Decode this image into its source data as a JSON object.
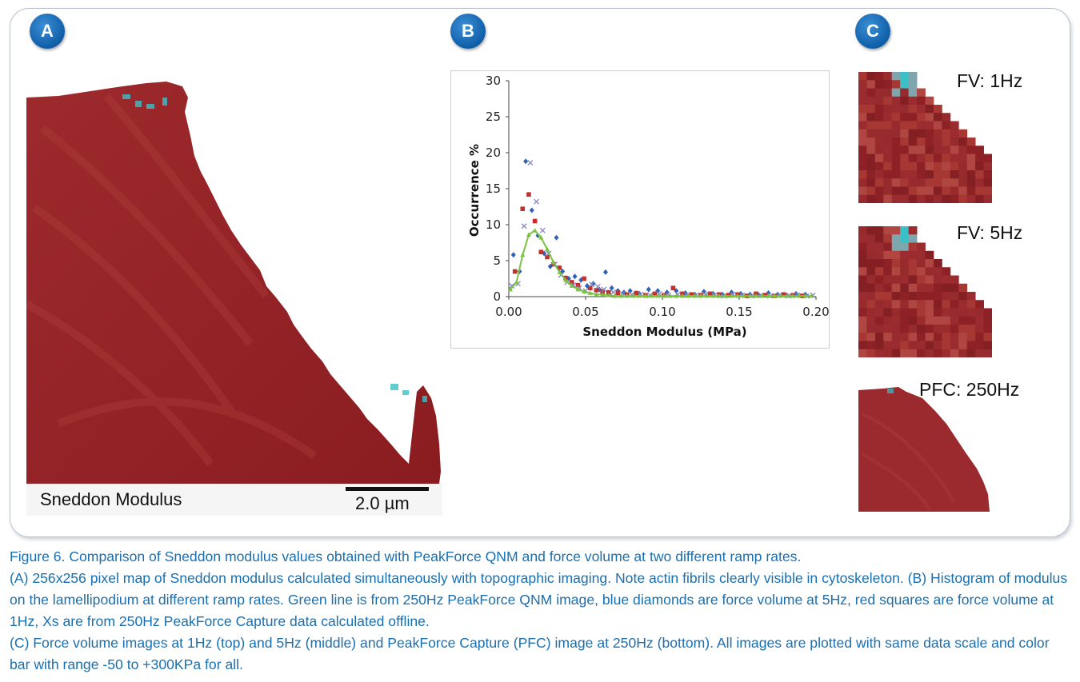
{
  "panels": {
    "a": {
      "badge": "A",
      "bottom_label": "Sneddon Modulus",
      "scale_bar": "2.0 µm"
    },
    "b": {
      "badge": "B"
    },
    "c": {
      "badge": "C",
      "labels": [
        "FV: 1Hz",
        "FV: 5Hz",
        "PFC: 250Hz"
      ]
    }
  },
  "colors": {
    "badge": "#1465b0",
    "map_dark": "#8e1f24",
    "map_mid": "#a4312f",
    "highlight": "#3cc0c8",
    "caption": "#1a6fb0",
    "series_fv5": "#2e62b8",
    "series_fv1": "#c0302c",
    "series_pfc_capture": "#7e86c6",
    "series_qnm": "#7cc242"
  },
  "chart_data": {
    "type": "scatter",
    "xlabel": "Sneddon Modulus (MPa)",
    "ylabel": "Occurrence %",
    "xlim": [
      0,
      0.2
    ],
    "ylim": [
      0,
      30
    ],
    "xticks": [
      "0.00",
      "0.05",
      "0.10",
      "0.15",
      "0.20"
    ],
    "yticks": [
      "0",
      "5",
      "10",
      "15",
      "20",
      "25",
      "30"
    ],
    "grid": false,
    "series": [
      {
        "marker": "diamond",
        "color": "#2e62b8",
        "points": [
          [
            0.003,
            5.8
          ],
          [
            0.007,
            3.5
          ],
          [
            0.011,
            18.8
          ],
          [
            0.015,
            12.0
          ],
          [
            0.019,
            8.5
          ],
          [
            0.023,
            6.0
          ],
          [
            0.027,
            4.2
          ],
          [
            0.031,
            8.2
          ],
          [
            0.035,
            3.5
          ],
          [
            0.039,
            2.5
          ],
          [
            0.043,
            2.8
          ],
          [
            0.047,
            2.3
          ],
          [
            0.051,
            1.5
          ],
          [
            0.055,
            1.8
          ],
          [
            0.059,
            1.0
          ],
          [
            0.063,
            3.4
          ],
          [
            0.067,
            1.2
          ],
          [
            0.071,
            0.8
          ],
          [
            0.075,
            0.6
          ],
          [
            0.079,
            0.8
          ],
          [
            0.085,
            0.4
          ],
          [
            0.091,
            1.0
          ],
          [
            0.097,
            0.8
          ],
          [
            0.103,
            0.6
          ],
          [
            0.109,
            0.8
          ],
          [
            0.115,
            0.5
          ],
          [
            0.121,
            0.3
          ],
          [
            0.127,
            0.7
          ],
          [
            0.133,
            0.4
          ],
          [
            0.139,
            0.3
          ],
          [
            0.145,
            0.6
          ],
          [
            0.151,
            0.4
          ],
          [
            0.157,
            0.3
          ],
          [
            0.163,
            0.2
          ],
          [
            0.169,
            0.5
          ],
          [
            0.175,
            0.3
          ],
          [
            0.181,
            0.2
          ],
          [
            0.187,
            0.4
          ],
          [
            0.193,
            0.3
          ]
        ]
      },
      {
        "marker": "square",
        "color": "#c0302c",
        "points": [
          [
            0.004,
            3.5
          ],
          [
            0.009,
            12.2
          ],
          [
            0.013,
            14.2
          ],
          [
            0.017,
            10.5
          ],
          [
            0.021,
            6.2
          ],
          [
            0.025,
            5.5
          ],
          [
            0.029,
            4.5
          ],
          [
            0.033,
            4.0
          ],
          [
            0.037,
            2.6
          ],
          [
            0.041,
            2.0
          ],
          [
            0.045,
            1.6
          ],
          [
            0.049,
            2.5
          ],
          [
            0.053,
            1.2
          ],
          [
            0.057,
            0.9
          ],
          [
            0.061,
            0.7
          ],
          [
            0.065,
            0.6
          ],
          [
            0.071,
            0.5
          ],
          [
            0.077,
            0.3
          ],
          [
            0.083,
            0.5
          ],
          [
            0.089,
            0.2
          ],
          [
            0.095,
            0.4
          ],
          [
            0.101,
            0.2
          ],
          [
            0.107,
            1.2
          ],
          [
            0.113,
            0.4
          ],
          [
            0.119,
            0.3
          ],
          [
            0.125,
            0.2
          ],
          [
            0.131,
            0.4
          ],
          [
            0.137,
            0.3
          ],
          [
            0.143,
            0.2
          ],
          [
            0.149,
            0.3
          ],
          [
            0.155,
            0.1
          ],
          [
            0.161,
            0.4
          ],
          [
            0.167,
            0.2
          ],
          [
            0.173,
            0.1
          ],
          [
            0.179,
            0.3
          ],
          [
            0.185,
            0.2
          ],
          [
            0.191,
            0.1
          ]
        ]
      },
      {
        "marker": "x",
        "color": "#7e86c6",
        "points": [
          [
            0.002,
            1.5
          ],
          [
            0.006,
            1.8
          ],
          [
            0.01,
            9.8
          ],
          [
            0.014,
            18.6
          ],
          [
            0.018,
            13.2
          ],
          [
            0.022,
            9.2
          ],
          [
            0.026,
            6.0
          ],
          [
            0.03,
            4.5
          ],
          [
            0.034,
            3.0
          ],
          [
            0.038,
            2.0
          ],
          [
            0.042,
            1.6
          ],
          [
            0.046,
            1.2
          ],
          [
            0.05,
            0.8
          ],
          [
            0.054,
            1.7
          ],
          [
            0.058,
            1.4
          ],
          [
            0.062,
            1.0
          ],
          [
            0.068,
            0.6
          ],
          [
            0.074,
            0.4
          ],
          [
            0.08,
            0.3
          ],
          [
            0.086,
            0.3
          ],
          [
            0.092,
            0.2
          ],
          [
            0.098,
            0.4
          ],
          [
            0.104,
            0.2
          ],
          [
            0.11,
            0.3
          ],
          [
            0.116,
            0.2
          ],
          [
            0.122,
            0.2
          ],
          [
            0.128,
            0.3
          ],
          [
            0.134,
            0.2
          ],
          [
            0.14,
            0.1
          ],
          [
            0.146,
            0.3
          ],
          [
            0.152,
            0.2
          ],
          [
            0.158,
            0.1
          ],
          [
            0.164,
            0.2
          ],
          [
            0.17,
            0.1
          ],
          [
            0.176,
            0.2
          ],
          [
            0.182,
            0.1
          ],
          [
            0.188,
            0.2
          ],
          [
            0.194,
            0.1
          ],
          [
            0.198,
            0.2
          ]
        ]
      },
      {
        "marker": "triangle-line",
        "color": "#7cc242",
        "points": [
          [
            0.001,
            1.0
          ],
          [
            0.005,
            2.0
          ],
          [
            0.009,
            5.8
          ],
          [
            0.013,
            8.6
          ],
          [
            0.017,
            9.2
          ],
          [
            0.021,
            8.2
          ],
          [
            0.025,
            6.6
          ],
          [
            0.029,
            4.8
          ],
          [
            0.033,
            3.4
          ],
          [
            0.037,
            2.3
          ],
          [
            0.041,
            1.5
          ],
          [
            0.045,
            1.0
          ],
          [
            0.049,
            0.7
          ],
          [
            0.053,
            0.5
          ],
          [
            0.057,
            0.3
          ],
          [
            0.061,
            0.3
          ],
          [
            0.065,
            0.2
          ],
          [
            0.069,
            0.1
          ],
          [
            0.073,
            0.1
          ],
          [
            0.077,
            0.1
          ],
          [
            0.081,
            0.1
          ],
          [
            0.085,
            0.1
          ],
          [
            0.089,
            0.1
          ],
          [
            0.093,
            0.1
          ],
          [
            0.097,
            0.1
          ],
          [
            0.101,
            0.1
          ],
          [
            0.105,
            0.1
          ],
          [
            0.109,
            0.1
          ],
          [
            0.113,
            0.1
          ],
          [
            0.117,
            0.1
          ],
          [
            0.121,
            0.1
          ],
          [
            0.125,
            0.1
          ],
          [
            0.129,
            0.1
          ],
          [
            0.133,
            0.1
          ],
          [
            0.137,
            0.1
          ],
          [
            0.141,
            0.1
          ],
          [
            0.145,
            0.1
          ],
          [
            0.149,
            0.1
          ],
          [
            0.153,
            0.1
          ],
          [
            0.157,
            0.1
          ],
          [
            0.161,
            0.1
          ],
          [
            0.165,
            0.1
          ],
          [
            0.169,
            0.1
          ],
          [
            0.173,
            0.1
          ],
          [
            0.177,
            0.1
          ],
          [
            0.181,
            0.1
          ],
          [
            0.185,
            0.1
          ],
          [
            0.189,
            0.1
          ],
          [
            0.193,
            0.1
          ],
          [
            0.197,
            0.1
          ]
        ]
      }
    ]
  },
  "caption": {
    "lines": [
      "Figure 6. Comparison of Sneddon modulus values obtained with PeakForce QNM and force volume at two different ramp rates.",
      "(A) 256x256 pixel map of Sneddon modulus calculated simultaneously with topographic imaging. Note actin fibrils clearly visible in cytoskeleton. (B) Histogram of modulus on the lamellipodium at different ramp rates. Green line is from 250Hz PeakForce QNM image, blue diamonds are force volume at 5Hz, red squares are force volume at 1Hz, Xs are from 250Hz PeakForce Capture data calculated offline.",
      "(C) Force volume images at 1Hz (top) and 5Hz (middle) and PeakForce Capture (PFC) image at 250Hz (bottom). All images are plotted with same data scale and color bar with range -50 to +300KPa for all."
    ]
  }
}
